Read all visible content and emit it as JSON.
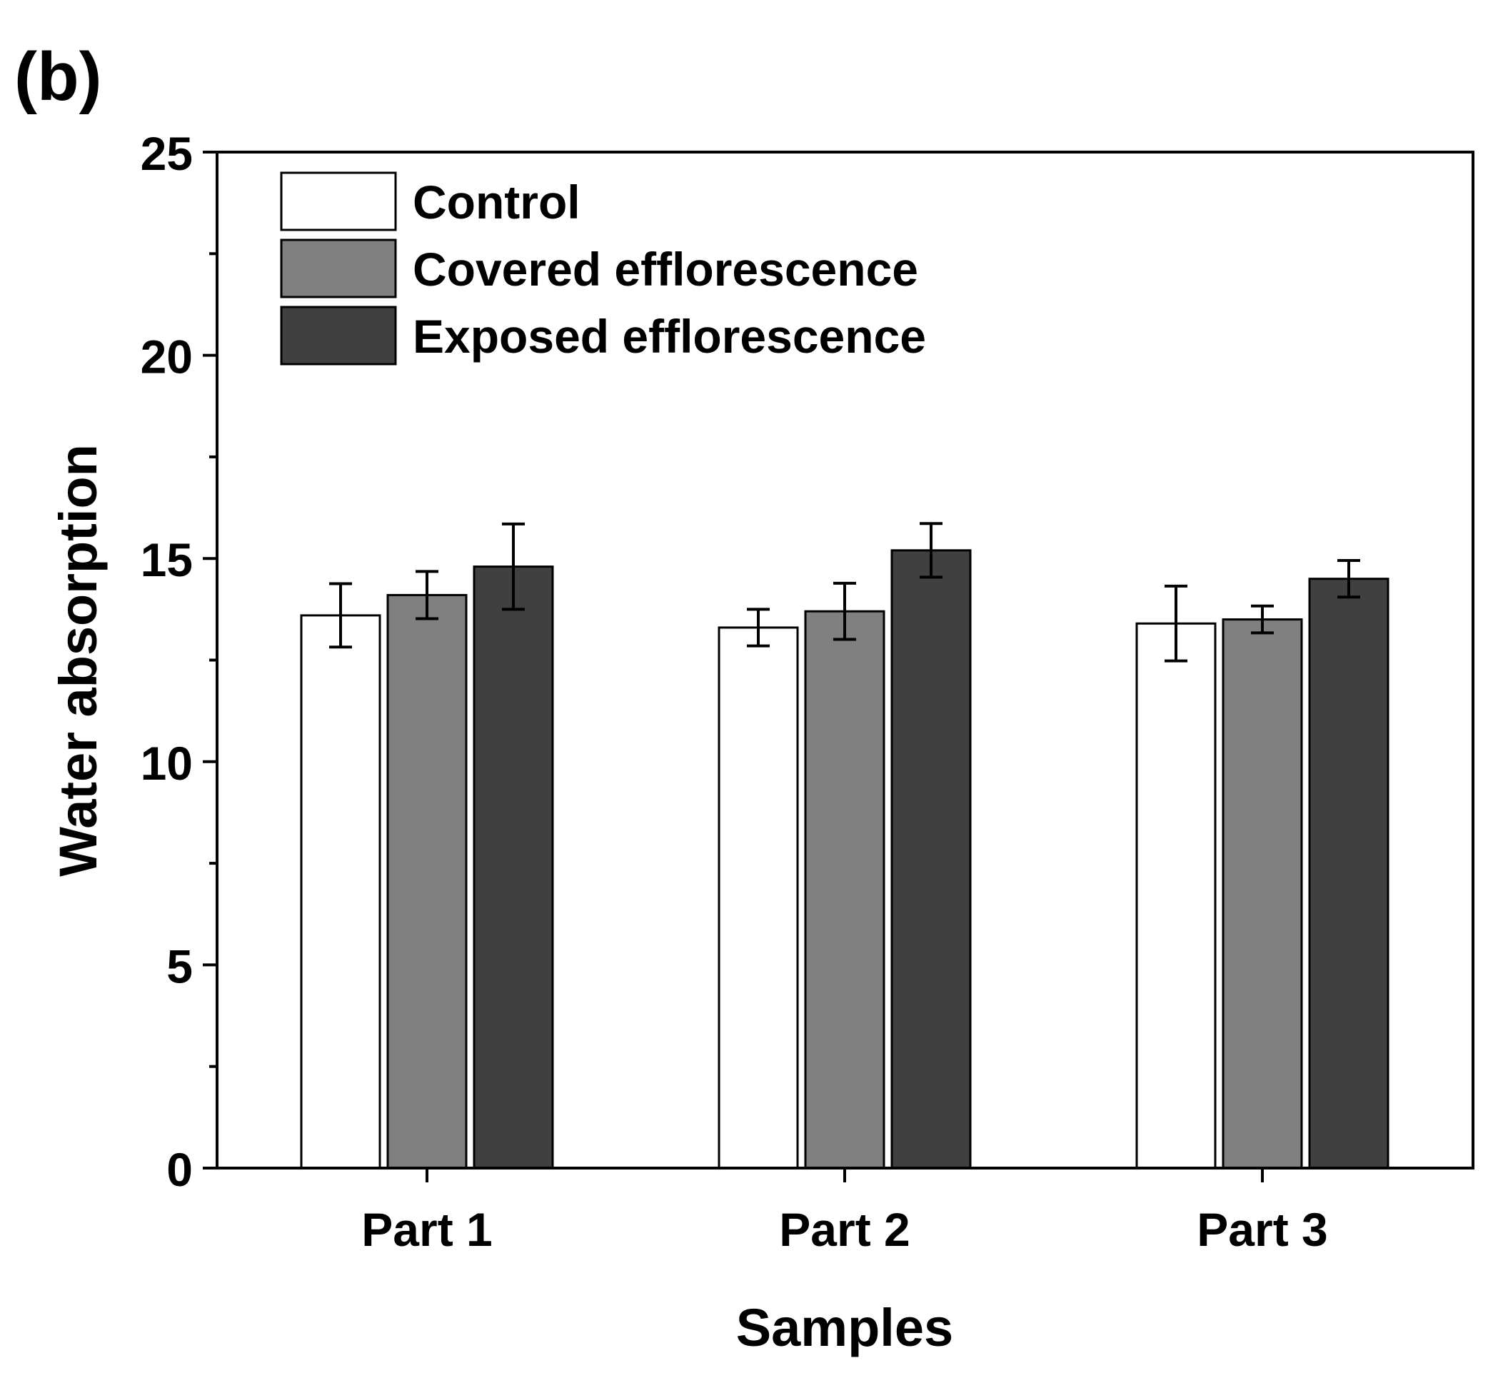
{
  "panel_label": "(b)",
  "chart_data": {
    "type": "bar",
    "title": "",
    "xlabel": "Samples",
    "ylabel": "Water absorption",
    "ylim": [
      0,
      25
    ],
    "yticks": [
      0,
      5,
      10,
      15,
      20,
      25
    ],
    "ytick_labels": [
      "0",
      "5",
      "10",
      "15",
      "20",
      "25"
    ],
    "grid": false,
    "legend_position": "top-left",
    "categories": [
      "Part 1",
      "Part 2",
      "Part 3"
    ],
    "series": [
      {
        "name": "Control",
        "color": "#ffffff",
        "values": [
          13.6,
          13.3,
          13.4
        ],
        "errors": [
          0.78,
          0.45,
          0.92
        ]
      },
      {
        "name": "Covered efflorescence",
        "color": "#808080",
        "values": [
          14.1,
          13.7,
          13.5
        ],
        "errors": [
          0.58,
          0.69,
          0.33
        ]
      },
      {
        "name": "Exposed efflorescence",
        "color": "#404040",
        "values": [
          14.8,
          15.2,
          14.5
        ],
        "errors": [
          1.05,
          0.66,
          0.45
        ]
      }
    ]
  }
}
